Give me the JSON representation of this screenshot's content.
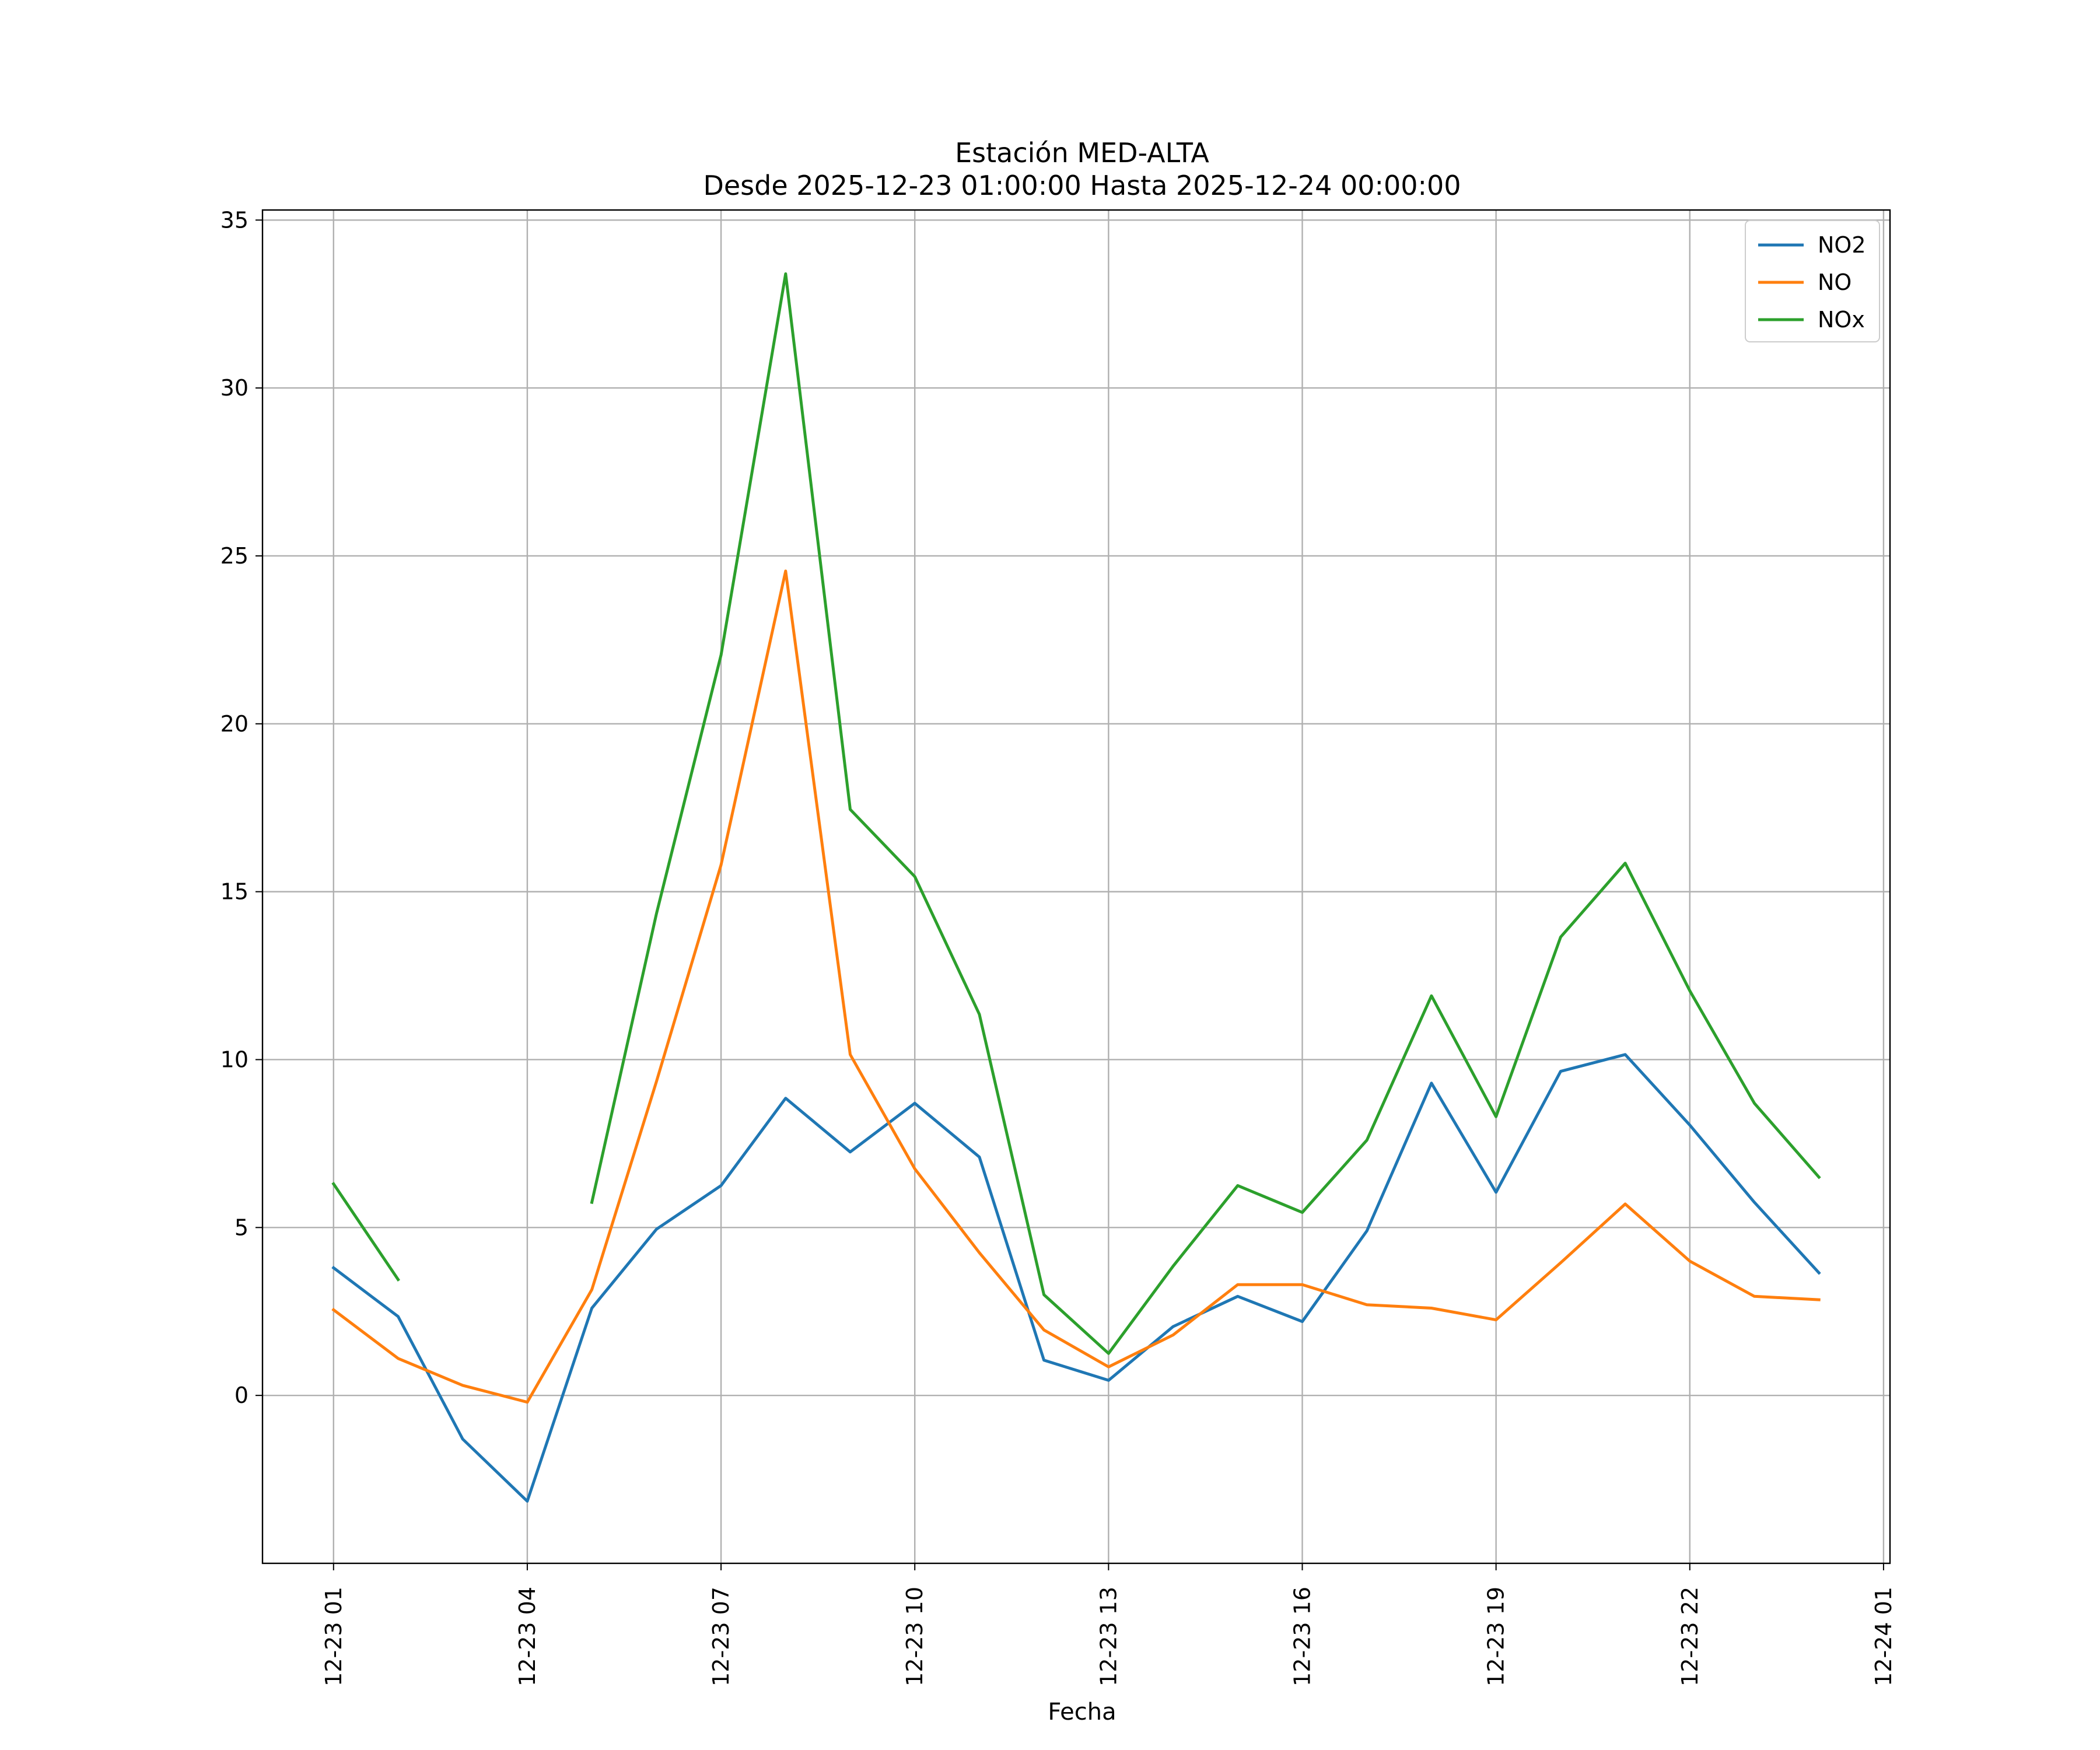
{
  "chart_data": {
    "type": "line",
    "title": "Estación MED-ALTA",
    "subtitle": "Desde 2025-12-23 01:00:00 Hasta 2025-12-24 00:00:00",
    "xlabel": "Fecha",
    "ylabel": "",
    "x": [
      "2025-12-23 01:00",
      "2025-12-23 02:00",
      "2025-12-23 03:00",
      "2025-12-23 04:00",
      "2025-12-23 05:00",
      "2025-12-23 06:00",
      "2025-12-23 07:00",
      "2025-12-23 08:00",
      "2025-12-23 09:00",
      "2025-12-23 10:00",
      "2025-12-23 11:00",
      "2025-12-23 12:00",
      "2025-12-23 13:00",
      "2025-12-23 14:00",
      "2025-12-23 15:00",
      "2025-12-23 16:00",
      "2025-12-23 17:00",
      "2025-12-23 18:00",
      "2025-12-23 19:00",
      "2025-12-23 20:00",
      "2025-12-23 21:00",
      "2025-12-23 22:00",
      "2025-12-23 23:00",
      "2025-12-24 00:00"
    ],
    "xlim": [
      "2025-12-22 23:54",
      "2025-12-24 01:06"
    ],
    "x_ticks": [
      "12-23 01",
      "12-23 04",
      "12-23 07",
      "12-23 10",
      "12-23 13",
      "12-23 16",
      "12-23 19",
      "12-23 22",
      "12-24 01"
    ],
    "y_ticks": [
      0,
      5,
      10,
      15,
      20,
      25,
      30,
      35
    ],
    "ylim": [
      -5,
      35.3
    ],
    "grid": true,
    "legend_position": "top-right",
    "series": [
      {
        "name": "NO2",
        "color": "#1f77b4",
        "values": [
          3.8,
          2.35,
          -1.3,
          -3.15,
          2.6,
          4.95,
          6.25,
          8.85,
          7.25,
          8.7,
          7.1,
          1.05,
          0.45,
          2.05,
          2.95,
          2.2,
          4.9,
          9.3,
          6.05,
          9.65,
          10.15,
          8.05,
          5.75,
          3.65
        ]
      },
      {
        "name": "NO",
        "color": "#ff7f0e",
        "values": [
          2.55,
          1.1,
          0.3,
          -0.2,
          3.15,
          9.35,
          15.8,
          24.55,
          10.15,
          6.75,
          4.25,
          1.95,
          0.85,
          1.8,
          3.3,
          3.3,
          2.7,
          2.6,
          2.25,
          3.95,
          5.7,
          4.0,
          2.95,
          2.85
        ]
      },
      {
        "name": "NOx",
        "color": "#2ca02c",
        "values": [
          6.3,
          3.45,
          null,
          null,
          5.75,
          14.35,
          22.05,
          33.4,
          17.45,
          15.45,
          11.35,
          3.0,
          1.25,
          3.85,
          6.25,
          5.45,
          7.6,
          11.9,
          8.3,
          13.65,
          15.85,
          12.05,
          8.7,
          6.5
        ]
      }
    ]
  }
}
